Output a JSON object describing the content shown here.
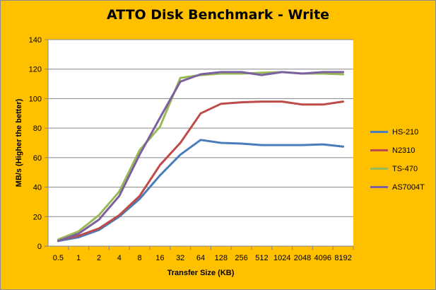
{
  "chart_data": {
    "type": "line",
    "title": "ATTO Disk Benchmark - Write",
    "xlabel": "Transfer Size (KB)",
    "ylabel": "MB/s (Higher the better)",
    "ylim": [
      0,
      140
    ],
    "yticks": [
      0,
      20,
      40,
      60,
      80,
      100,
      120,
      140
    ],
    "grid": true,
    "legend_position": "right",
    "categories": [
      "0.5",
      "1",
      "2",
      "4",
      "8",
      "16",
      "32",
      "64",
      "128",
      "256",
      "512",
      "1024",
      "2048",
      "4096",
      "8192"
    ],
    "series": [
      {
        "name": "HS-210",
        "color": "#4a7ebb",
        "values": [
          3.5,
          6,
          11,
          20,
          32,
          48,
          62,
          72,
          70,
          69.5,
          68.5,
          68.5,
          68.5,
          69,
          67.5
        ]
      },
      {
        "name": "N2310",
        "color": "#be4b48",
        "values": [
          4,
          7,
          12,
          21,
          34,
          55,
          70,
          90,
          96.5,
          97.5,
          98,
          98,
          96,
          96,
          98
        ]
      },
      {
        "name": "TS-470",
        "color": "#98b954",
        "values": [
          4.5,
          10,
          21,
          37,
          65,
          81,
          114,
          116,
          117,
          117,
          117.5,
          118,
          117,
          117,
          116.5
        ]
      },
      {
        "name": "AS7004T",
        "color": "#7d60a0",
        "values": [
          3.5,
          8.5,
          18,
          34,
          62,
          87,
          111.5,
          116.5,
          118,
          118,
          116,
          118,
          117,
          118,
          118
        ]
      }
    ]
  }
}
